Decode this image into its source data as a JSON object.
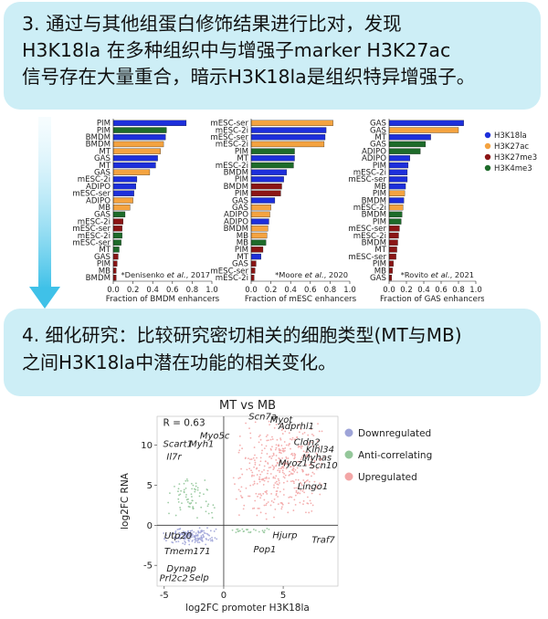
{
  "step3": {
    "lines": [
      "3. 通过与其他组蛋白修饰结果进行比对，发现",
      "H3K18la 在多种组织中与增强子marker  H3K27ac",
      "信号存在大量重合，暗示H3K18la是组织特异增强子。"
    ]
  },
  "step4": {
    "lines": [
      "4. 细化研究：比较研究密切相关的细胞类型(MT与MB)",
      "之间H3K18la中潜在功能的相关变化。"
    ]
  },
  "colors": {
    "H3K18la": "#1d2fdb",
    "H3K27ac": "#f4a340",
    "H3K27me3": "#8b1515",
    "H3K4me3": "#1e6b2a",
    "box_bg": "#cdeef6",
    "downregulated": "#9ea4d8",
    "anti": "#94c79a",
    "upregulated": "#f3a6a6"
  },
  "legend_top": {
    "items": [
      {
        "label": "H3K18la",
        "mark": "H3K18la"
      },
      {
        "label": "H3K27ac",
        "mark": "H3K27ac"
      },
      {
        "label": "H3K27me3",
        "mark": "H3K27me3"
      },
      {
        "label": "H3K4me3",
        "mark": "H3K4me3"
      }
    ]
  },
  "chart_data": [
    {
      "type": "bar",
      "orientation": "horizontal",
      "xlabel": "Fraction of BMDM enhancers",
      "xlim": [
        0,
        1.0
      ],
      "xticks": [
        "0.0",
        "0.2",
        "0.4",
        "0.6",
        "0.8",
        "1.0"
      ],
      "annotation": {
        "pre": "*Denisenko ",
        "it": "et al.",
        "post": ", 2017"
      },
      "bars": [
        {
          "label": "PIM",
          "mark": "H3K18la",
          "value": 0.74
        },
        {
          "label": "PIM",
          "mark": "H3K4me3",
          "value": 0.54
        },
        {
          "label": "BMDM",
          "mark": "H3K18la",
          "value": 0.53
        },
        {
          "label": "BMDM",
          "mark": "H3K27ac",
          "value": 0.51
        },
        {
          "label": "MT",
          "mark": "H3K27ac",
          "value": 0.48
        },
        {
          "label": "GAS",
          "mark": "H3K18la",
          "value": 0.45
        },
        {
          "label": "MT",
          "mark": "H3K18la",
          "value": 0.43
        },
        {
          "label": "GAS",
          "mark": "H3K27ac",
          "value": 0.37
        },
        {
          "label": "mESC-2i",
          "mark": "H3K18la",
          "value": 0.24
        },
        {
          "label": "ADIPO",
          "mark": "H3K18la",
          "value": 0.23
        },
        {
          "label": "mESC-ser",
          "mark": "H3K18la",
          "value": 0.21
        },
        {
          "label": "ADIPO",
          "mark": "H3K27ac",
          "value": 0.2
        },
        {
          "label": "MB",
          "mark": "H3K27ac",
          "value": 0.17
        },
        {
          "label": "GAS",
          "mark": "H3K4me3",
          "value": 0.12
        },
        {
          "label": "mESC-2i",
          "mark": "H3K27me3",
          "value": 0.1
        },
        {
          "label": "mESC-ser",
          "mark": "H3K27me3",
          "value": 0.09
        },
        {
          "label": "mESC-2i",
          "mark": "H3K4me3",
          "value": 0.09
        },
        {
          "label": "mESC-ser",
          "mark": "H3K4me3",
          "value": 0.08
        },
        {
          "label": "MT",
          "mark": "H3K4me3",
          "value": 0.06
        },
        {
          "label": "GAS",
          "mark": "H3K27me3",
          "value": 0.05
        },
        {
          "label": "PIM",
          "mark": "H3K27me3",
          "value": 0.04
        },
        {
          "label": "MB",
          "mark": "H3K27me3",
          "value": 0.03
        },
        {
          "label": "BMDM",
          "mark": "H3K27me3",
          "value": 0.03
        }
      ]
    },
    {
      "type": "bar",
      "orientation": "horizontal",
      "xlabel": "Fraction of mESC enhancers",
      "xlim": [
        0,
        1.0
      ],
      "xticks": [
        "0.0",
        "0.2",
        "0.4",
        "0.6",
        "0.8",
        "1.0"
      ],
      "annotation": {
        "pre": "*Moore ",
        "it": "et al.",
        "post": ", 2020"
      },
      "bars": [
        {
          "label": "mESC-ser",
          "mark": "H3K27ac",
          "value": 0.83
        },
        {
          "label": "mESC-2i",
          "mark": "H3K18la",
          "value": 0.76
        },
        {
          "label": "mESC-ser",
          "mark": "H3K18la",
          "value": 0.75
        },
        {
          "label": "mESC-2i",
          "mark": "H3K27ac",
          "value": 0.74
        },
        {
          "label": "PIM",
          "mark": "H3K4me3",
          "value": 0.44
        },
        {
          "label": "MT",
          "mark": "H3K18la",
          "value": 0.44
        },
        {
          "label": "mESC-2i",
          "mark": "H3K4me3",
          "value": 0.43
        },
        {
          "label": "BMDM",
          "mark": "H3K18la",
          "value": 0.36
        },
        {
          "label": "PIM",
          "mark": "H3K18la",
          "value": 0.33
        },
        {
          "label": "BMDM",
          "mark": "H3K27me3",
          "value": 0.31
        },
        {
          "label": "PIM",
          "mark": "H3K27me3",
          "value": 0.3
        },
        {
          "label": "GAS",
          "mark": "H3K18la",
          "value": 0.24
        },
        {
          "label": "GAS",
          "mark": "H3K27ac",
          "value": 0.2
        },
        {
          "label": "ADIPO",
          "mark": "H3K27ac",
          "value": 0.19
        },
        {
          "label": "ADIPO",
          "mark": "H3K18la",
          "value": 0.18
        },
        {
          "label": "BMDM",
          "mark": "H3K27ac",
          "value": 0.17
        },
        {
          "label": "MB",
          "mark": "H3K27ac",
          "value": 0.16
        },
        {
          "label": "MB",
          "mark": "H3K4me3",
          "value": 0.15
        },
        {
          "label": "PIM",
          "mark": "H3K27me3",
          "value": 0.12
        },
        {
          "label": "MT",
          "mark": "H3K18la",
          "value": 0.1
        },
        {
          "label": "GAS",
          "mark": "H3K27me3",
          "value": 0.05
        },
        {
          "label": "mESC-ser",
          "mark": "H3K27me3",
          "value": 0.04
        },
        {
          "label": "mESC-2i",
          "mark": "H3K27me3",
          "value": 0.03
        }
      ]
    },
    {
      "type": "bar",
      "orientation": "horizontal",
      "xlabel": "Fraction of GAS enhancers",
      "xlim": [
        0,
        1.0
      ],
      "xticks": [
        "0.0",
        "0.2",
        "0.4",
        "0.6",
        "0.8",
        "1.0"
      ],
      "annotation": {
        "pre": "*Rovito ",
        "it": "et al.",
        "post": ", 2021"
      },
      "bars": [
        {
          "label": "GAS",
          "mark": "H3K18la",
          "value": 0.86
        },
        {
          "label": "GAS",
          "mark": "H3K27ac",
          "value": 0.8
        },
        {
          "label": "MT",
          "mark": "H3K18la",
          "value": 0.48
        },
        {
          "label": "GAS",
          "mark": "H3K4me3",
          "value": 0.42
        },
        {
          "label": "ADIPO",
          "mark": "H3K4me3",
          "value": 0.36
        },
        {
          "label": "ADIPO",
          "mark": "H3K18la",
          "value": 0.24
        },
        {
          "label": "PIM",
          "mark": "H3K18la",
          "value": 0.22
        },
        {
          "label": "mESC-2i",
          "mark": "H3K18la",
          "value": 0.21
        },
        {
          "label": "mESC-ser",
          "mark": "H3K18la",
          "value": 0.21
        },
        {
          "label": "MB",
          "mark": "H3K18la",
          "value": 0.19
        },
        {
          "label": "PIM",
          "mark": "H3K27ac",
          "value": 0.18
        },
        {
          "label": "BMDM",
          "mark": "H3K18la",
          "value": 0.17
        },
        {
          "label": "mESC-2i",
          "mark": "H3K27ac",
          "value": 0.16
        },
        {
          "label": "BMDM",
          "mark": "H3K4me3",
          "value": 0.15
        },
        {
          "label": "PIM",
          "mark": "H3K4me3",
          "value": 0.14
        },
        {
          "label": "mESC-ser",
          "mark": "H3K27me3",
          "value": 0.12
        },
        {
          "label": "mESC-2i",
          "mark": "H3K27me3",
          "value": 0.11
        },
        {
          "label": "BMDM",
          "mark": "H3K27me3",
          "value": 0.1
        },
        {
          "label": "MT",
          "mark": "H3K27me3",
          "value": 0.09
        },
        {
          "label": "mESC-ser",
          "mark": "H3K27me3",
          "value": 0.08
        },
        {
          "label": "PIM",
          "mark": "H3K27me3",
          "value": 0.05
        },
        {
          "label": "MB",
          "mark": "H3K27me3",
          "value": 0.04
        },
        {
          "label": "GAS",
          "mark": "H3K27me3",
          "value": 0.03
        }
      ]
    },
    {
      "type": "scatter",
      "title": "MT vs MB",
      "xlabel": "log2FC promoter H3K18la",
      "ylabel": "log2FC RNA",
      "xlim": [
        -5.6,
        9.6
      ],
      "ylim": [
        -7.6,
        13.6
      ],
      "xticks": [
        -5,
        0,
        5
      ],
      "yticks": [
        -5,
        0,
        5,
        10
      ],
      "annotation": "R = 0.63",
      "legend": [
        {
          "label": "Downregulated",
          "color": "downregulated"
        },
        {
          "label": "Anti-correlating",
          "color": "anti"
        },
        {
          "label": "Upregulated",
          "color": "upregulated"
        }
      ],
      "clusters": [
        {
          "group": "upregulated",
          "x": [
            0.5,
            9.0
          ],
          "y": [
            0.7,
            13.0
          ],
          "n": 420
        },
        {
          "group": "anti",
          "x": [
            -5.0,
            -0.4
          ],
          "y": [
            0.4,
            6.0
          ],
          "n": 70
        },
        {
          "group": "anti",
          "x": [
            0.5,
            4.5
          ],
          "y": [
            -1.0,
            -0.3
          ],
          "n": 25
        },
        {
          "group": "downregulated",
          "x": [
            -5.2,
            -0.4
          ],
          "y": [
            -2.5,
            -0.2
          ],
          "n": 170
        }
      ],
      "gene_labels": [
        {
          "name": "Scn7a",
          "x": 2.1,
          "y": 13.2
        },
        {
          "name": "Myot",
          "x": 3.9,
          "y": 12.8
        },
        {
          "name": "Adprhl1",
          "x": 4.6,
          "y": 12.0
        },
        {
          "name": "Myo5c",
          "x": -2.0,
          "y": 10.8
        },
        {
          "name": "Scart1",
          "x": -5.1,
          "y": 9.8
        },
        {
          "name": "Myh1",
          "x": -2.9,
          "y": 9.8
        },
        {
          "name": "Cldn2",
          "x": 5.9,
          "y": 10.0
        },
        {
          "name": "Klhl34",
          "x": 6.9,
          "y": 9.1
        },
        {
          "name": "Myhas",
          "x": 6.6,
          "y": 8.1
        },
        {
          "name": "Il7r",
          "x": -4.8,
          "y": 8.2
        },
        {
          "name": "Myoz1",
          "x": 4.6,
          "y": 7.4
        },
        {
          "name": "Scn10",
          "x": 7.2,
          "y": 7.1
        },
        {
          "name": "Lingo1",
          "x": 6.2,
          "y": 4.5
        },
        {
          "name": "Utp20",
          "x": -5.0,
          "y": -1.7
        },
        {
          "name": "Hjurp",
          "x": 4.1,
          "y": -1.6
        },
        {
          "name": "Traf7",
          "x": 7.4,
          "y": -2.2
        },
        {
          "name": "Tmem171",
          "x": -5.0,
          "y": -3.6
        },
        {
          "name": "Pop1",
          "x": 2.5,
          "y": -3.4
        },
        {
          "name": "Dynap",
          "x": -4.8,
          "y": -5.8
        },
        {
          "name": "Prl2c2",
          "x": -5.4,
          "y": -7.0
        },
        {
          "name": "Selp",
          "x": -2.9,
          "y": -6.9
        }
      ]
    }
  ]
}
